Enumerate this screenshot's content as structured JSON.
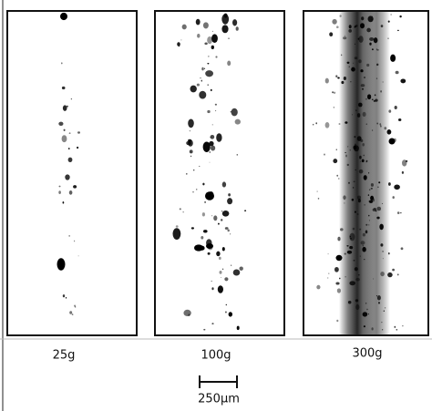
{
  "panels": [
    {
      "label": "25g"
    },
    {
      "label": "100g"
    },
    {
      "label": "300g"
    }
  ],
  "scale_bar": {
    "label": "250μm"
  }
}
